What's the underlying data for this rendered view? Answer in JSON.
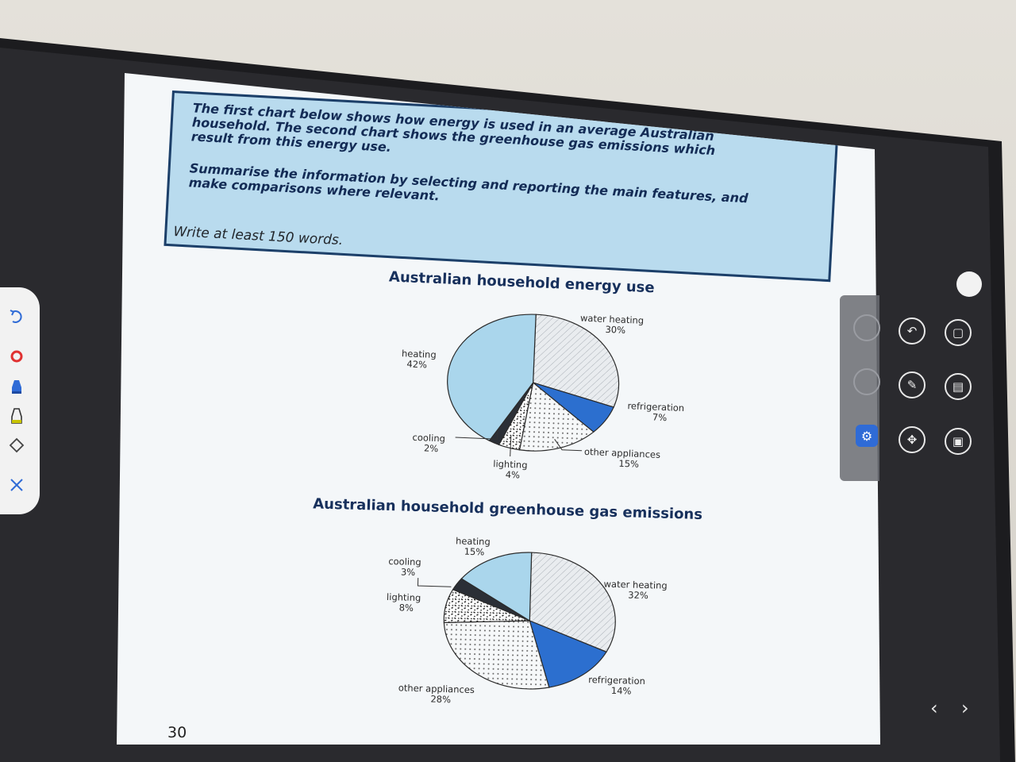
{
  "prompt": {
    "lines": [
      "The first chart below shows how energy is used in an average Australian",
      "household. The second chart shows the greenhouse gas emissions which",
      "result from this energy use.",
      "Summarise the information by selecting and reporting the main features, and",
      "make comparisons where relevant."
    ]
  },
  "instruction": "Write at least 150 words.",
  "page_number": "30",
  "chart_data": [
    {
      "type": "pie",
      "title": "Australian household energy use",
      "slices": [
        {
          "label": "water heating",
          "value": 30,
          "value_label": "30%",
          "color": "#e6e9ec",
          "pattern": "hatch"
        },
        {
          "label": "refrigeration",
          "value": 7,
          "value_label": "7%",
          "color": "#2c6fcf",
          "pattern": "solid"
        },
        {
          "label": "other appliances",
          "value": 15,
          "value_label": "15%",
          "color": "#f2f5f7",
          "pattern": "dots"
        },
        {
          "label": "lighting",
          "value": 4,
          "value_label": "4%",
          "color": "#ffffff",
          "pattern": "speckle"
        },
        {
          "label": "cooling",
          "value": 2,
          "value_label": "2%",
          "color": "#2b2f36",
          "pattern": "solid"
        },
        {
          "label": "heating",
          "value": 42,
          "value_label": "42%",
          "color": "#aad6ec",
          "pattern": "solid"
        }
      ]
    },
    {
      "type": "pie",
      "title": "Australian household greenhouse gas emissions",
      "slices": [
        {
          "label": "water heating",
          "value": 32,
          "value_label": "32%",
          "color": "#e6e9ec",
          "pattern": "hatch"
        },
        {
          "label": "refrigeration",
          "value": 14,
          "value_label": "14%",
          "color": "#2c6fcf",
          "pattern": "solid"
        },
        {
          "label": "other appliances",
          "value": 28,
          "value_label": "28%",
          "color": "#f2f5f7",
          "pattern": "dots"
        },
        {
          "label": "lighting",
          "value": 8,
          "value_label": "8%",
          "color": "#ffffff",
          "pattern": "speckle"
        },
        {
          "label": "cooling",
          "value": 3,
          "value_label": "3%",
          "color": "#2b2f36",
          "pattern": "solid"
        },
        {
          "label": "heating",
          "value": 15,
          "value_label": "15%",
          "color": "#aad6ec",
          "pattern": "solid"
        }
      ]
    }
  ],
  "left_toolbar": {
    "tools": [
      {
        "name": "undo-icon",
        "color": "#2f6bd6"
      },
      {
        "name": "record-icon",
        "color": "#e03131"
      },
      {
        "name": "pen-icon",
        "color": "#2f6bd6"
      },
      {
        "name": "highlighter-icon",
        "color": "#c8c400"
      },
      {
        "name": "eraser-icon",
        "color": "#444444"
      },
      {
        "name": "close-icon",
        "color": "#2f6bd6"
      }
    ]
  },
  "right_panel": {
    "buttons": [
      {
        "name": "back-icon"
      },
      {
        "name": "window-icon"
      },
      {
        "name": "annotate-icon"
      },
      {
        "name": "board-icon"
      },
      {
        "name": "expand-icon"
      },
      {
        "name": "files-icon"
      }
    ]
  }
}
